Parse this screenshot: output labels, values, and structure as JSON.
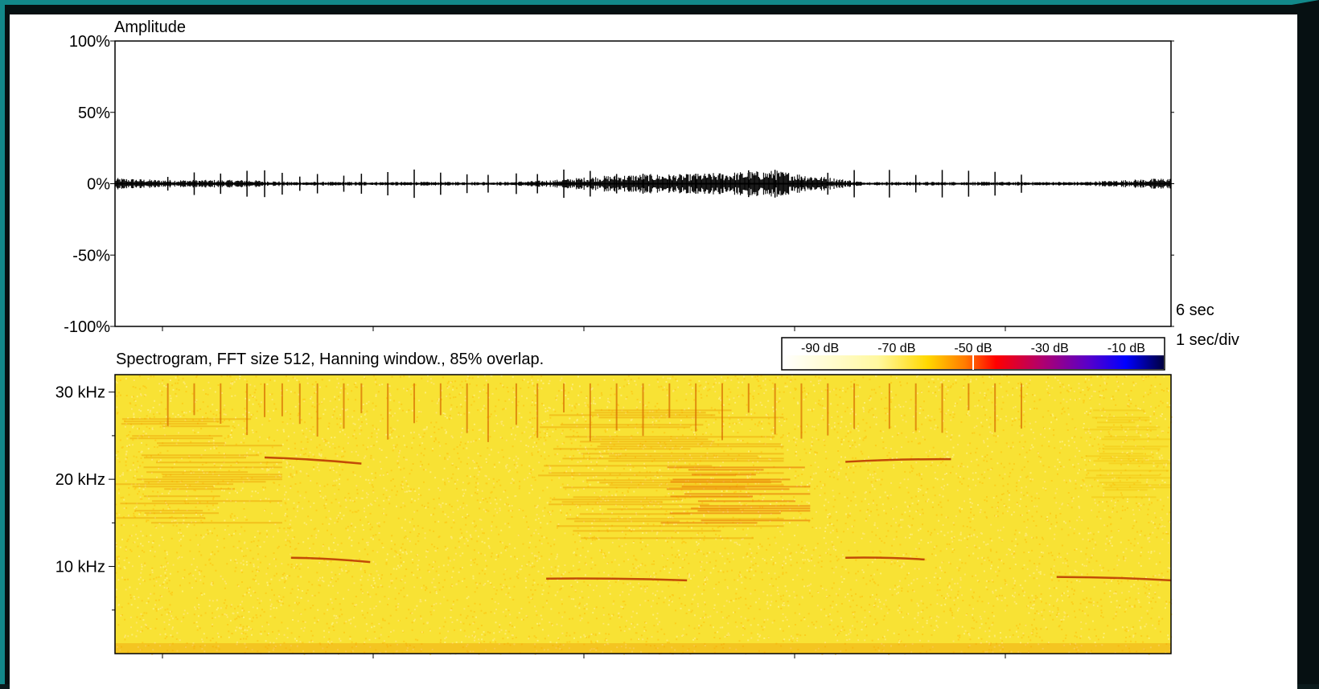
{
  "chart_data": [
    {
      "type": "line",
      "panel": "waveform",
      "title": "Amplitude",
      "ylabel": "",
      "xlabel": "",
      "y_ticks": [
        "100%",
        "50%",
        "0%",
        "-50%",
        "-100%"
      ],
      "ylim": [
        -100,
        100
      ],
      "xlim": [
        0,
        6
      ],
      "x_unit": "sec",
      "duration_label": "6 sec",
      "division_label": "1 sec/div",
      "series": [
        {
          "values_description_sec": [
            0,
            0.25,
            0.5,
            0.75,
            1.0,
            1.25,
            1.5,
            1.75,
            2.0,
            2.25,
            2.5,
            2.75,
            3.0,
            3.25,
            3.5,
            3.75,
            4.0,
            4.25,
            4.5,
            4.75,
            5.0,
            5.25,
            5.5,
            5.75,
            6.0
          ],
          "values": [
            3,
            2,
            2,
            2,
            1,
            1,
            1,
            1,
            1,
            1,
            2,
            4,
            5,
            5,
            6,
            7,
            4,
            1,
            1,
            1,
            1,
            1,
            1,
            2,
            3
          ]
        }
      ],
      "grid": false
    },
    {
      "type": "heatmap",
      "panel": "spectrogram",
      "title": "Spectrogram, FFT size 512, Hanning window., 85% overlap.",
      "y_ticks": [
        "30 kHz",
        "20 kHz",
        "10 kHz"
      ],
      "ylim_khz": [
        0,
        32
      ],
      "xlim": [
        0,
        6
      ],
      "colorbar": {
        "labels": [
          "-90 dB",
          "-70 dB",
          "-50 dB",
          "-30 dB",
          "-10 dB"
        ],
        "range_db": [
          -100,
          0
        ],
        "stops": [
          {
            "db": -100,
            "color": "#ffffff"
          },
          {
            "db": -75,
            "color": "#fff8a0"
          },
          {
            "db": -62,
            "color": "#ffd800"
          },
          {
            "db": -52,
            "color": "#ff7a00"
          },
          {
            "db": -44,
            "color": "#ff0000"
          },
          {
            "db": -32,
            "color": "#b0006e"
          },
          {
            "db": -20,
            "color": "#5a00c8"
          },
          {
            "db": -10,
            "color": "#0000ff"
          },
          {
            "db": 0,
            "color": "#000040"
          }
        ],
        "marker_db": -50
      },
      "background_color": "#f8e234",
      "energy_regions": [
        {
          "t": [
            0,
            0.95
          ],
          "f_khz": [
            14,
            27
          ],
          "level": "moderate"
        },
        {
          "t": [
            2.4,
            3.8
          ],
          "f_khz": [
            13,
            28
          ],
          "level": "moderate"
        },
        {
          "t": [
            3.1,
            3.95
          ],
          "f_khz": [
            15,
            22
          ],
          "level": "strong"
        },
        {
          "t": [
            5.5,
            6.0
          ],
          "f_khz": [
            18,
            28
          ],
          "level": "weak"
        }
      ],
      "tonal_traces": [
        {
          "t": [
            0.85,
            1.4
          ],
          "f_khz": [
            22.5,
            21.8
          ]
        },
        {
          "t": [
            1.0,
            1.45
          ],
          "f_khz": [
            11.0,
            10.5
          ]
        },
        {
          "t": [
            2.45,
            3.25
          ],
          "f_khz": [
            8.6,
            8.4
          ]
        },
        {
          "t": [
            4.15,
            4.75
          ],
          "f_khz": [
            22.0,
            22.3
          ]
        },
        {
          "t": [
            4.15,
            4.6
          ],
          "f_khz": [
            11.0,
            10.8
          ]
        },
        {
          "t": [
            5.35,
            6.0
          ],
          "f_khz": [
            8.8,
            8.4
          ]
        }
      ],
      "click_times_sec": [
        0.3,
        0.45,
        0.6,
        0.75,
        0.85,
        0.95,
        1.05,
        1.15,
        1.3,
        1.4,
        1.55,
        1.7,
        1.85,
        2.0,
        2.12,
        2.28,
        2.4,
        2.55,
        2.7,
        2.85,
        3.0,
        3.15,
        3.3,
        3.45,
        3.6,
        3.75,
        3.9,
        4.05,
        4.2,
        4.4,
        4.55,
        4.7,
        4.85,
        5.0,
        5.15
      ],
      "grid": false
    }
  ]
}
